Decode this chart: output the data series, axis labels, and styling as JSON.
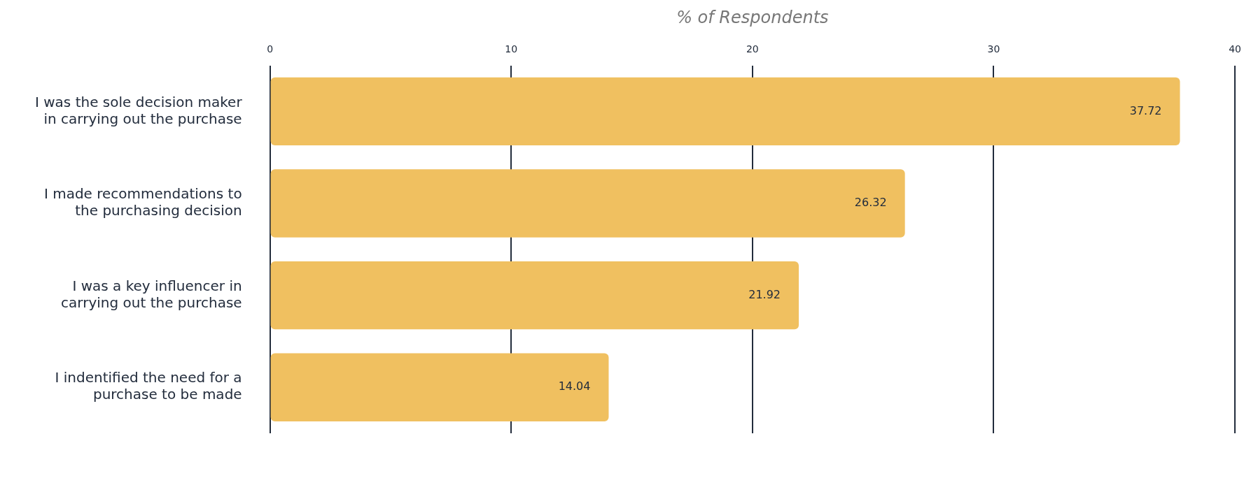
{
  "chart_data": {
    "type": "bar",
    "orientation": "horizontal",
    "xlabel": "% of Respondents",
    "categories": [
      "I was the sole decision maker in carrying out the purchase",
      "I made recommendations to the purchasing decision",
      "I was a key influencer in carrying out the purchase",
      "I indentified the need for a purchase to be made"
    ],
    "values": [
      37.72,
      26.32,
      21.92,
      14.04
    ],
    "color": "#f0c060",
    "xlim": [
      0,
      40
    ],
    "xticks": [
      0,
      10,
      20,
      30,
      40
    ],
    "grid": "x",
    "data_labels": true,
    "legend": false
  }
}
